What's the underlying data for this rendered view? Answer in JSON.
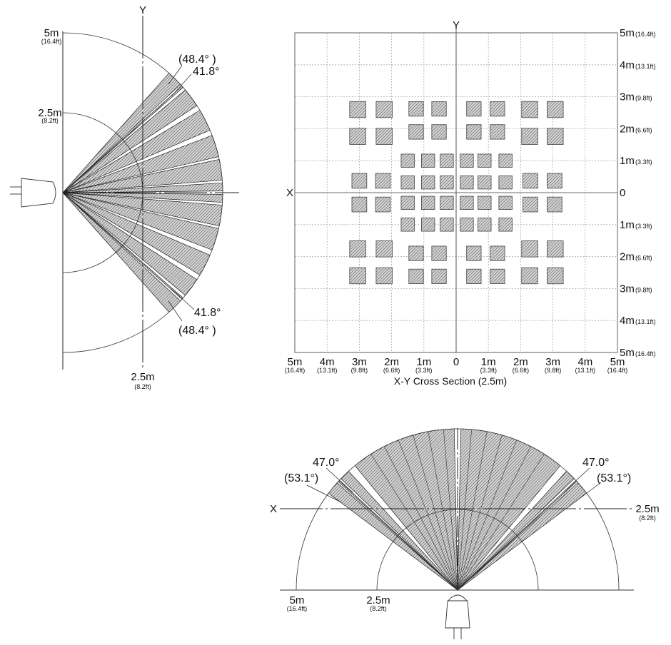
{
  "side_view": {
    "y_axis": "Y",
    "r5_label": "5m",
    "r5_ft": "(16.4ft)",
    "r25_label": "2.5m",
    "r25_ft": "(8.2ft)",
    "bottom_label": "2.5m",
    "bottom_ft": "(8.2ft)",
    "angle_top_outer": "(48.4° )",
    "angle_top_inner": "41.8°",
    "angle_bottom_inner": "41.8°",
    "angle_bottom_outer": "(48.4° )"
  },
  "cross_section": {
    "title": "X-Y Cross Section (2.5m)",
    "x_axis": "X",
    "y_axis": "Y",
    "x_ticks": [
      {
        "m": "5m",
        "ft": "(16.4ft)"
      },
      {
        "m": "4m",
        "ft": "(13.1ft)"
      },
      {
        "m": "3m",
        "ft": "(9.8ft)"
      },
      {
        "m": "2m",
        "ft": "(6.6ft)"
      },
      {
        "m": "1m",
        "ft": "(3.3ft)"
      },
      {
        "m": "0",
        "ft": ""
      },
      {
        "m": "1m",
        "ft": "(3.3ft)"
      },
      {
        "m": "2m",
        "ft": "(6.6ft)"
      },
      {
        "m": "3m",
        "ft": "(9.8ft)"
      },
      {
        "m": "4m",
        "ft": "(13.1ft)"
      },
      {
        "m": "5m",
        "ft": "(16.4ft)"
      }
    ],
    "y_ticks": [
      {
        "m": "5m",
        "ft": "(16.4ft)"
      },
      {
        "m": "4m",
        "ft": "(13.1ft)"
      },
      {
        "m": "3m",
        "ft": "(9.8ft)"
      },
      {
        "m": "2m",
        "ft": "(6.6ft)"
      },
      {
        "m": "1m",
        "ft": "(3.3ft)"
      },
      {
        "m": "0",
        "ft": ""
      },
      {
        "m": "1m",
        "ft": "(3.3ft)"
      },
      {
        "m": "2m",
        "ft": "(6.6ft)"
      },
      {
        "m": "3m",
        "ft": "(9.8ft)"
      },
      {
        "m": "4m",
        "ft": "(13.1ft)"
      },
      {
        "m": "5m",
        "ft": "(16.4ft)"
      }
    ]
  },
  "top_view": {
    "x_axis": "X",
    "right_label": "2.5m",
    "right_ft": "(8.2ft)",
    "r5_label": "5m",
    "r5_ft": "(16.4ft)",
    "r25_label": "2.5m",
    "r25_ft": "(8.2ft)",
    "angle_left_inner": "47.0°",
    "angle_left_outer": "(53.1°)",
    "angle_right_inner": "47.0°",
    "angle_right_outer": "(53.1°)"
  },
  "colors": {
    "line": "#111111",
    "hatch_fill": "#c8c8c8",
    "grid": "#aaaaaa"
  }
}
